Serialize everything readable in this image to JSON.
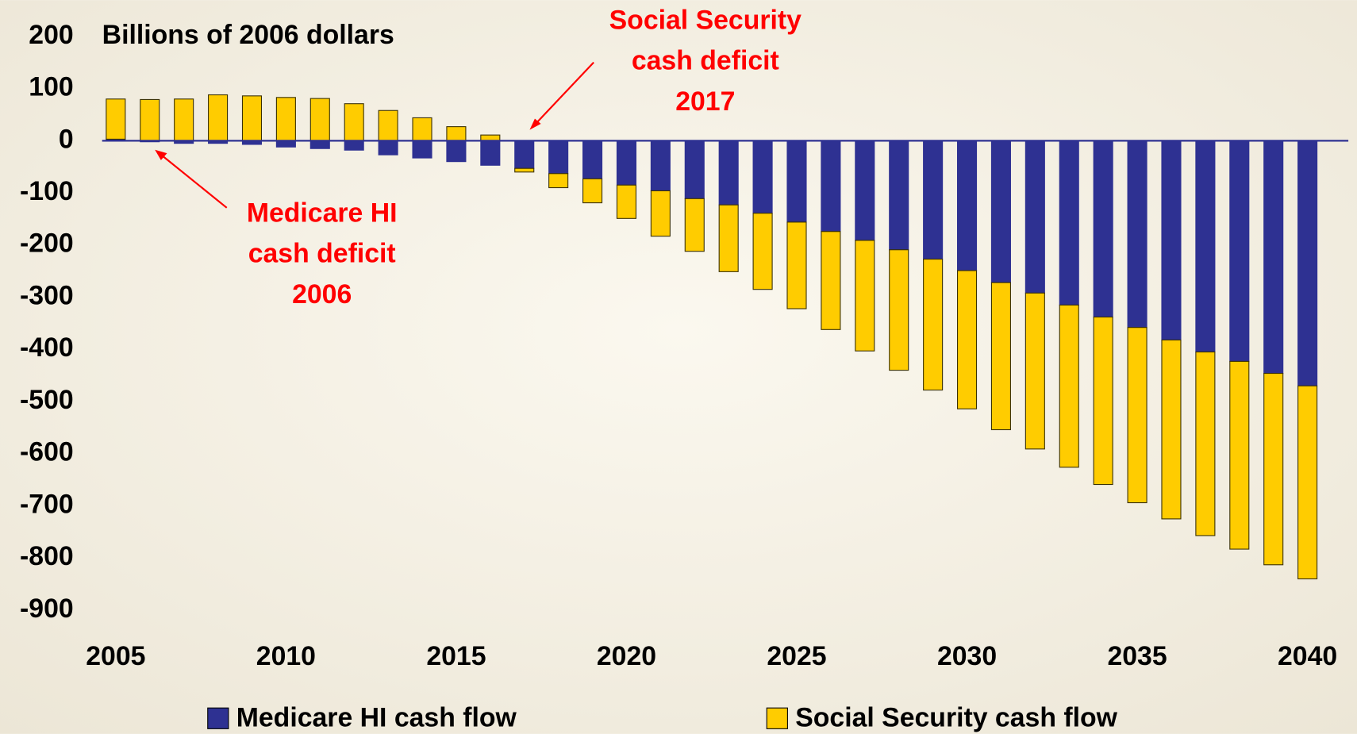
{
  "chart_data": {
    "type": "bar",
    "stacked": true,
    "y_label": "Billions of 2006 dollars",
    "x": [
      2005,
      2006,
      2007,
      2008,
      2009,
      2010,
      2011,
      2012,
      2013,
      2014,
      2015,
      2016,
      2017,
      2018,
      2019,
      2020,
      2021,
      2022,
      2023,
      2024,
      2025,
      2026,
      2027,
      2028,
      2029,
      2030,
      2031,
      2032,
      2033,
      2034,
      2035,
      2036,
      2037,
      2038,
      2039,
      2040
    ],
    "series": [
      {
        "name": "Medicare HI cash flow",
        "color": "#2e3192",
        "values": [
          3,
          -2,
          -5,
          -5,
          -7,
          -12,
          -15,
          -18,
          -27,
          -33,
          -40,
          -47,
          -53,
          -63,
          -73,
          -85,
          -96,
          -111,
          -123,
          -139,
          -156,
          -174,
          -191,
          -209,
          -227,
          -249,
          -272,
          -292,
          -315,
          -338,
          -358,
          -382,
          -405,
          -423,
          -446,
          -470
        ]
      },
      {
        "name": "Social Security cash flow",
        "color": "#ffcc00",
        "values": [
          77,
          79,
          80,
          88,
          86,
          83,
          81,
          71,
          58,
          44,
          27,
          11,
          -7,
          -27,
          -46,
          -64,
          -87,
          -101,
          -128,
          -146,
          -166,
          -188,
          -212,
          -231,
          -251,
          -265,
          -282,
          -299,
          -311,
          -321,
          -336,
          -343,
          -352,
          -360,
          -367,
          -370
        ]
      }
    ],
    "xlim": [
      2004.6,
      2041.2
    ],
    "xticks": [
      2005,
      2010,
      2015,
      2020,
      2025,
      2030,
      2035,
      2040
    ],
    "ylim": [
      -900,
      200
    ],
    "yticks": [
      200,
      100,
      0,
      -100,
      -200,
      -300,
      -400,
      -500,
      -600,
      -700,
      -800,
      -900
    ],
    "legend": "bottom",
    "annotations": [
      {
        "lines": [
          "Social Security",
          "cash deficit",
          "2017"
        ],
        "color": "#ff0000"
      },
      {
        "lines": [
          "Medicare HI",
          "cash deficit",
          "2006"
        ],
        "color": "#ff0000"
      }
    ]
  }
}
